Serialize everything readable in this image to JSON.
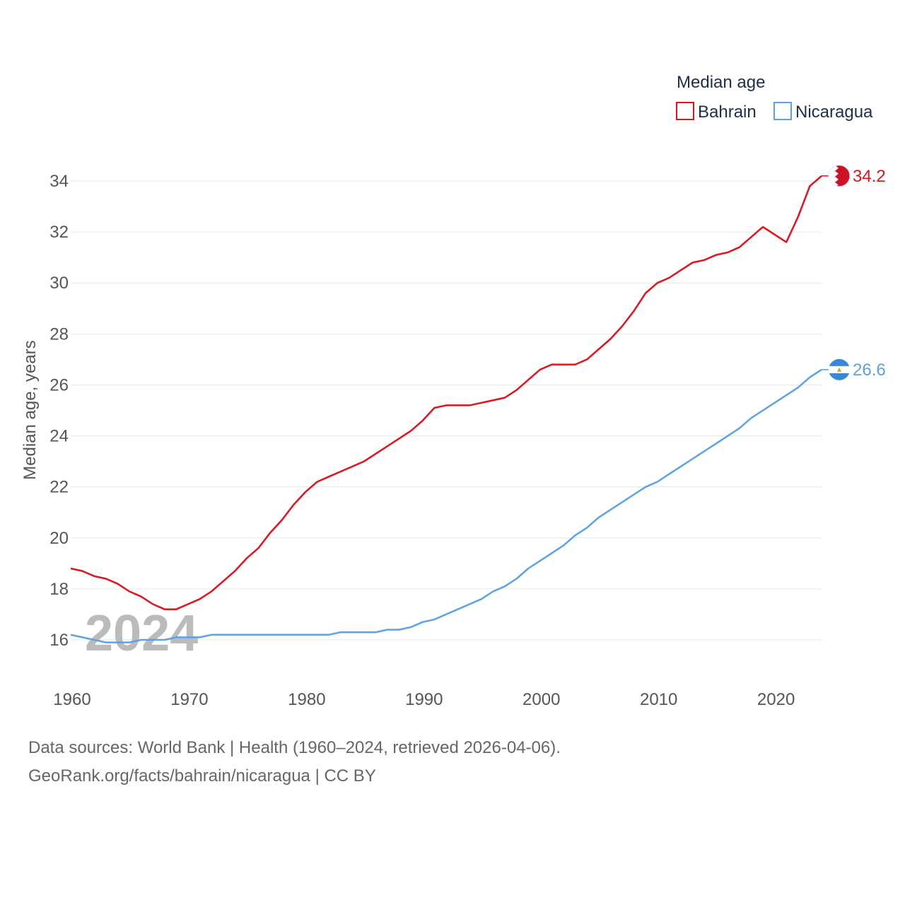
{
  "chart_data": {
    "type": "line",
    "legend_title": "Median age",
    "ylabel": "Median age, years",
    "xlabel": "",
    "ylim": [
      14.7,
      35.5
    ],
    "xlim": [
      1960,
      2024
    ],
    "y_ticks": [
      16,
      18,
      20,
      22,
      24,
      26,
      28,
      30,
      32,
      34
    ],
    "x_ticks": [
      1960,
      1970,
      1980,
      1990,
      2000,
      2010,
      2020
    ],
    "current_year_label": "2024",
    "legend_position": "top-right",
    "grid": true,
    "x": [
      1960,
      1961,
      1962,
      1963,
      1964,
      1965,
      1966,
      1967,
      1968,
      1969,
      1970,
      1971,
      1972,
      1973,
      1974,
      1975,
      1976,
      1977,
      1978,
      1979,
      1980,
      1981,
      1982,
      1983,
      1984,
      1985,
      1986,
      1987,
      1988,
      1989,
      1990,
      1991,
      1992,
      1993,
      1994,
      1995,
      1996,
      1997,
      1998,
      1999,
      2000,
      2001,
      2002,
      2003,
      2004,
      2005,
      2006,
      2007,
      2008,
      2009,
      2010,
      2011,
      2012,
      2013,
      2014,
      2015,
      2016,
      2017,
      2018,
      2019,
      2020,
      2021,
      2022,
      2023,
      2024
    ],
    "series": [
      {
        "name": "Bahrain",
        "color": "#e3121b",
        "end_label": "34.2",
        "values": [
          18.8,
          18.7,
          18.5,
          18.4,
          18.2,
          17.9,
          17.7,
          17.4,
          17.2,
          17.2,
          17.4,
          17.6,
          17.9,
          18.3,
          18.7,
          19.2,
          19.6,
          20.2,
          20.7,
          21.3,
          21.8,
          22.2,
          22.4,
          22.6,
          22.8,
          23.0,
          23.3,
          23.6,
          23.9,
          24.2,
          24.6,
          25.1,
          25.2,
          25.2,
          25.2,
          25.3,
          25.4,
          25.5,
          25.8,
          26.2,
          26.6,
          26.8,
          26.8,
          26.8,
          27.0,
          27.4,
          27.8,
          28.3,
          28.9,
          29.6,
          30.0,
          30.2,
          30.5,
          30.8,
          30.9,
          31.1,
          31.2,
          31.4,
          31.8,
          32.2,
          31.9,
          31.6,
          32.6,
          33.8,
          34.2
        ]
      },
      {
        "name": "Nicaragua",
        "color": "#5ba3e6",
        "end_label": "26.6",
        "values": [
          16.2,
          16.1,
          16.0,
          15.9,
          15.9,
          15.9,
          16.0,
          16.0,
          16.0,
          16.1,
          16.1,
          16.1,
          16.2,
          16.2,
          16.2,
          16.2,
          16.2,
          16.2,
          16.2,
          16.2,
          16.2,
          16.2,
          16.2,
          16.3,
          16.3,
          16.3,
          16.3,
          16.4,
          16.4,
          16.5,
          16.7,
          16.8,
          17.0,
          17.2,
          17.4,
          17.6,
          17.9,
          18.1,
          18.4,
          18.8,
          19.1,
          19.4,
          19.7,
          20.1,
          20.4,
          20.8,
          21.1,
          21.4,
          21.7,
          22.0,
          22.2,
          22.5,
          22.8,
          23.1,
          23.4,
          23.7,
          24.0,
          24.3,
          24.7,
          25.0,
          25.3,
          25.6,
          25.9,
          26.3,
          26.6
        ]
      }
    ]
  },
  "footer": {
    "line1": "Data sources: World Bank | Health (1960–2024, retrieved 2026-04-06).",
    "line2": "GeoRank.org/facts/bahrain/nicaragua | CC BY"
  }
}
